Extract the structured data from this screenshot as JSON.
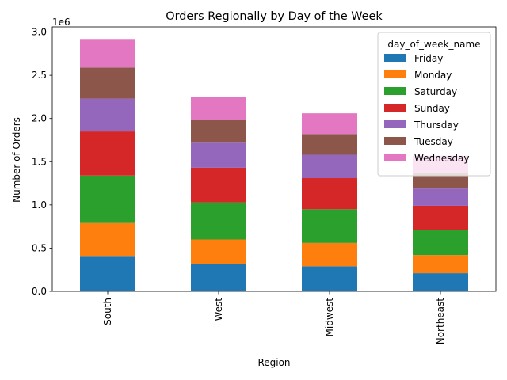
{
  "chart_data": {
    "type": "bar",
    "stacked": true,
    "title": "Orders Regionally by Day of the Week",
    "xlabel": "Region",
    "ylabel": "Number of Orders",
    "y_offset_text": "1e6",
    "ylim": [
      0,
      3.06
    ],
    "y_ticks": [
      "0.0",
      "0.5",
      "1.0",
      "1.5",
      "2.0",
      "2.5",
      "3.0"
    ],
    "categories": [
      "South",
      "West",
      "Midwest",
      "Northeast"
    ],
    "legend": {
      "title": "day_of_week_name",
      "placement": "top-right"
    },
    "series": [
      {
        "name": "Friday",
        "color": "#1f77b4",
        "values": [
          0.41,
          0.32,
          0.29,
          0.21
        ]
      },
      {
        "name": "Monday",
        "color": "#ff7f0e",
        "values": [
          0.38,
          0.28,
          0.27,
          0.21
        ]
      },
      {
        "name": "Saturday",
        "color": "#2ca02c",
        "values": [
          0.55,
          0.43,
          0.39,
          0.29
        ]
      },
      {
        "name": "Sunday",
        "color": "#d62728",
        "values": [
          0.51,
          0.4,
          0.36,
          0.28
        ]
      },
      {
        "name": "Thursday",
        "color": "#9467bd",
        "values": [
          0.38,
          0.29,
          0.27,
          0.2
        ]
      },
      {
        "name": "Tuesday",
        "color": "#8c564b",
        "values": [
          0.36,
          0.26,
          0.24,
          0.18
        ]
      },
      {
        "name": "Wednesday",
        "color": "#e377c2",
        "values": [
          0.33,
          0.27,
          0.24,
          0.2
        ]
      }
    ]
  }
}
